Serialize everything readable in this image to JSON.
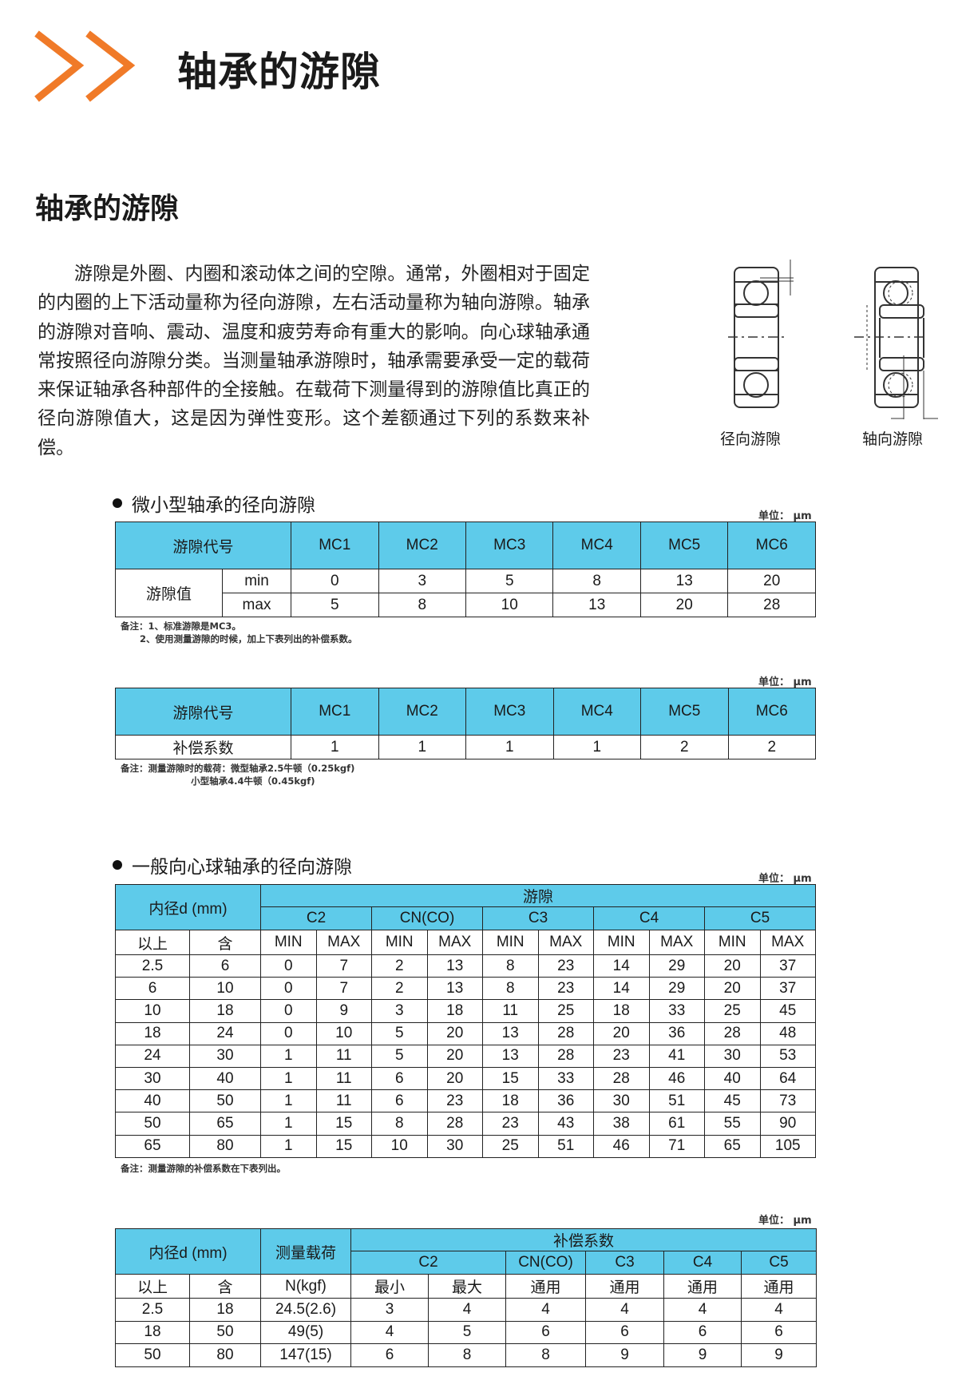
{
  "header": {
    "title": "轴承的游隙",
    "accent_color": "#f07a28"
  },
  "section": {
    "title": "轴承的游隙",
    "paragraph": "游隙是外圈、内圈和滚动体之间的空隙。通常，外圈相对于固定的内圈的上下活动量称为径向游隙，左右活动量称为轴向游隙。轴承的游隙对音响、震动、温度和疲劳寿命有重大的影响。向心球轴承通常按照径向游隙分类。当测量轴承游隙时，轴承需要承受一定的载荷来保证轴承各种部件的全接触。在载荷下测量得到的游隙值比真正的径向游隙值大，这是因为弹性变形。这个差额通过下列的系数来补偿。",
    "diagram_radial": "径向游隙",
    "diagram_axial": "轴向游隙"
  },
  "unit": "单位：  μm",
  "header_color": "#5ecbea",
  "mini": {
    "heading": "微小型轴承的径向游隙",
    "table1": {
      "code_label": "游隙代号",
      "value_label": "游隙值",
      "min_label": "min",
      "max_label": "max",
      "codes": [
        "MC1",
        "MC2",
        "MC3",
        "MC4",
        "MC5",
        "MC6"
      ],
      "min": [
        "0",
        "3",
        "5",
        "8",
        "13",
        "20"
      ],
      "max": [
        "5",
        "8",
        "10",
        "13",
        "20",
        "28"
      ]
    },
    "note1": "备注：1、标准游隙是MC3。\n      2、使用测量游隙的时候，加上下表列出的补偿系数。",
    "table2": {
      "code_label": "游隙代号",
      "factor_label": "补偿系数",
      "codes": [
        "MC1",
        "MC2",
        "MC3",
        "MC4",
        "MC5",
        "MC6"
      ],
      "factors": [
        "1",
        "1",
        "1",
        "1",
        "2",
        "2"
      ]
    },
    "note2": "备注：测量游隙时的载荷：微型轴承2.5牛顿（0.25kgf)\n                      小型轴承4.4牛顿（0.45kgf)"
  },
  "general": {
    "heading": "一般向心球轴承的径向游隙",
    "table3": {
      "bore_label": "内径d (mm)",
      "clearance_label": "游隙",
      "above": "以上",
      "incl": "含",
      "groups": [
        "C2",
        "CN(CO)",
        "C3",
        "C4",
        "C5"
      ],
      "min": "MIN",
      "max": "MAX",
      "rows": [
        [
          "2.5",
          "6",
          "0",
          "7",
          "2",
          "13",
          "8",
          "23",
          "14",
          "29",
          "20",
          "37"
        ],
        [
          "6",
          "10",
          "0",
          "7",
          "2",
          "13",
          "8",
          "23",
          "14",
          "29",
          "20",
          "37"
        ],
        [
          "10",
          "18",
          "0",
          "9",
          "3",
          "18",
          "11",
          "25",
          "18",
          "33",
          "25",
          "45"
        ],
        [
          "18",
          "24",
          "0",
          "10",
          "5",
          "20",
          "13",
          "28",
          "20",
          "36",
          "28",
          "48"
        ],
        [
          "24",
          "30",
          "1",
          "11",
          "5",
          "20",
          "13",
          "28",
          "23",
          "41",
          "30",
          "53"
        ],
        [
          "30",
          "40",
          "1",
          "11",
          "6",
          "20",
          "15",
          "33",
          "28",
          "46",
          "40",
          "64"
        ],
        [
          "40",
          "50",
          "1",
          "11",
          "6",
          "23",
          "18",
          "36",
          "30",
          "51",
          "45",
          "73"
        ],
        [
          "50",
          "65",
          "1",
          "15",
          "8",
          "28",
          "23",
          "43",
          "38",
          "61",
          "55",
          "90"
        ],
        [
          "65",
          "80",
          "1",
          "15",
          "10",
          "30",
          "25",
          "51",
          "46",
          "71",
          "65",
          "105"
        ]
      ]
    },
    "note3": "备注：测量游隙的补偿系数在下表列出。",
    "table4": {
      "bore_label": "内径d (mm)",
      "load_label": "测量载荷",
      "factor_label": "补偿系数",
      "above": "以上",
      "incl": "含",
      "load_unit": "N(kgf)",
      "groups": [
        "C2",
        "CN(CO)",
        "C3",
        "C4",
        "C5"
      ],
      "sub": [
        "最小",
        "最大",
        "通用",
        "通用",
        "通用",
        "通用"
      ],
      "rows": [
        [
          "2.5",
          "18",
          "24.5(2.6)",
          "3",
          "4",
          "4",
          "4",
          "4",
          "4"
        ],
        [
          "18",
          "50",
          "49(5)",
          "4",
          "5",
          "6",
          "6",
          "6",
          "6"
        ],
        [
          "50",
          "80",
          "147(15)",
          "6",
          "8",
          "8",
          "9",
          "9",
          "9"
        ]
      ]
    }
  }
}
